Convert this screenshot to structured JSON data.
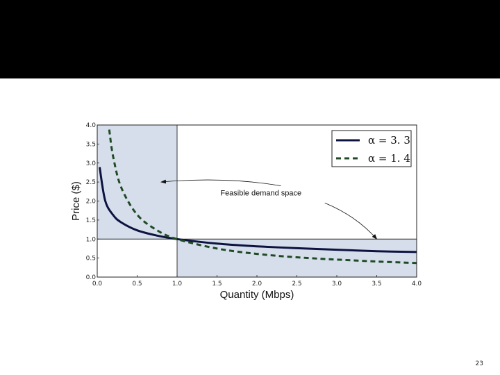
{
  "slide": {
    "page_number": "23"
  },
  "chart_data": {
    "type": "line",
    "xlabel": "Quantity (Mbps)",
    "ylabel": "Price ($)",
    "xlim": [
      0.0,
      4.0
    ],
    "ylim": [
      0.0,
      4.0
    ],
    "x_ticks": [
      "0.0",
      "0.5",
      "1.0",
      "1.5",
      "2.0",
      "2.5",
      "3.0",
      "3.5",
      "4.0"
    ],
    "y_ticks": [
      "0.0",
      "0.5",
      "1.0",
      "1.5",
      "2.0",
      "2.5",
      "3.0",
      "3.5",
      "4.0"
    ],
    "grid": false,
    "legend_position": "top-right",
    "series": [
      {
        "name": "α = 3. 3",
        "alpha": 3.3,
        "style": "solid",
        "color": "#0d1240",
        "x": [
          0.03,
          0.1,
          0.2,
          0.3,
          0.5,
          0.75,
          1.0,
          1.5,
          2.0,
          2.5,
          3.0,
          3.5,
          4.0
        ],
        "y": [
          2.89,
          2.01,
          1.63,
          1.44,
          1.23,
          1.09,
          1.0,
          0.88,
          0.81,
          0.76,
          0.72,
          0.68,
          0.66
        ]
      },
      {
        "name": "α = 1. 4",
        "alpha": 1.4,
        "style": "dashed",
        "color": "#1f4a25",
        "x": [
          0.15,
          0.2,
          0.3,
          0.5,
          0.75,
          1.0,
          1.5,
          2.0,
          2.5,
          3.0,
          3.5,
          4.0
        ],
        "y": [
          3.88,
          3.16,
          2.36,
          1.64,
          1.23,
          1.0,
          0.75,
          0.61,
          0.52,
          0.46,
          0.41,
          0.37
        ]
      }
    ],
    "shaded_regions": [
      {
        "x": [
          0.0,
          1.0
        ],
        "y": [
          1.0,
          4.0
        ],
        "color": "#d5deea"
      },
      {
        "x": [
          1.0,
          4.0
        ],
        "y": [
          0.0,
          1.0
        ],
        "color": "#d5deea"
      }
    ],
    "reference_lines": {
      "x": 1.0,
      "y": 1.0
    },
    "annotations": [
      {
        "text": "Feasible demand space",
        "arrows_to": [
          [
            0.8,
            2.5
          ],
          [
            3.5,
            1.0
          ]
        ]
      }
    ]
  }
}
